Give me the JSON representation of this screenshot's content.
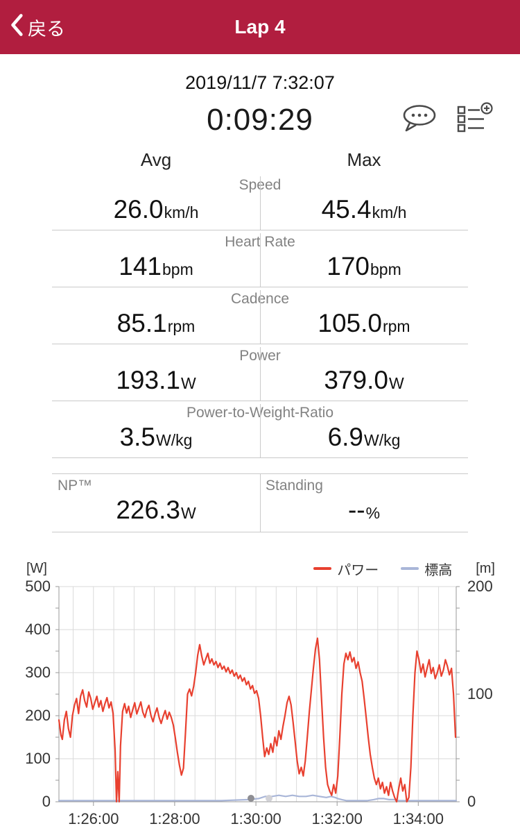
{
  "nav": {
    "back": "戻る",
    "title": "Lap 4"
  },
  "summary": {
    "datetime": "2019/11/7 7:32:07",
    "duration": "0:09:29"
  },
  "columns": {
    "avg": "Avg",
    "max": "Max"
  },
  "metrics": [
    {
      "label": "Speed",
      "avg": "26.0",
      "avgUnit": "km/h",
      "max": "45.4",
      "maxUnit": "km/h"
    },
    {
      "label": "Heart Rate",
      "avg": "141",
      "avgUnit": "bpm",
      "max": "170",
      "maxUnit": "bpm"
    },
    {
      "label": "Cadence",
      "avg": "85.1",
      "avgUnit": "rpm",
      "max": "105.0",
      "maxUnit": "rpm"
    },
    {
      "label": "Power",
      "avg": "193.1",
      "avgUnit": "W",
      "max": "379.0",
      "maxUnit": "W"
    },
    {
      "label": "Power-to-Weight-Ratio",
      "avg": "3.5",
      "avgUnit": "W/kg",
      "max": "6.9",
      "maxUnit": "W/kg"
    }
  ],
  "extra": {
    "np_label": "NP™",
    "np_value": "226.3",
    "np_unit": "W",
    "standing_label": "Standing",
    "standing_value": "--",
    "standing_unit": "%"
  },
  "theme": {
    "header_bg": "#b11e3f",
    "power_color": "#e8402f",
    "elevation_color": "#a9b6d8"
  },
  "chart_data": {
    "type": "line",
    "title": "",
    "legend_position": "top-right",
    "grid": true,
    "x_grid_step": 30,
    "x_domain": [
      0,
      587
    ],
    "x_ticks": [
      {
        "t": 51,
        "label": "1:26:00"
      },
      {
        "t": 171,
        "label": "1:28:00"
      },
      {
        "t": 291,
        "label": "1:30:00"
      },
      {
        "t": 411,
        "label": "1:32:00"
      },
      {
        "t": 531,
        "label": "1:34:00"
      }
    ],
    "y_left": {
      "unit": "[W]",
      "min": 0,
      "max": 500,
      "ticks": [
        0,
        100,
        200,
        300,
        400,
        500
      ],
      "minor": 50
    },
    "y_right": {
      "unit": "[m]",
      "min": 0,
      "max": 200,
      "ticks": [
        0,
        100,
        200
      ],
      "minor": 20
    },
    "series": [
      {
        "name": "パワー",
        "color": "#e8402f",
        "axis": "left",
        "points": [
          [
            0,
            190
          ],
          [
            3,
            155
          ],
          [
            5,
            145
          ],
          [
            8,
            190
          ],
          [
            11,
            210
          ],
          [
            14,
            170
          ],
          [
            17,
            150
          ],
          [
            20,
            200
          ],
          [
            23,
            225
          ],
          [
            26,
            240
          ],
          [
            29,
            205
          ],
          [
            32,
            245
          ],
          [
            35,
            260
          ],
          [
            38,
            235
          ],
          [
            41,
            220
          ],
          [
            44,
            255
          ],
          [
            47,
            240
          ],
          [
            50,
            215
          ],
          [
            53,
            230
          ],
          [
            56,
            245
          ],
          [
            59,
            220
          ],
          [
            62,
            235
          ],
          [
            65,
            210
          ],
          [
            68,
            228
          ],
          [
            71,
            242
          ],
          [
            74,
            218
          ],
          [
            77,
            232
          ],
          [
            80,
            205
          ],
          [
            83,
            120
          ],
          [
            85,
            0
          ],
          [
            87,
            70
          ],
          [
            89,
            0
          ],
          [
            91,
            130
          ],
          [
            94,
            210
          ],
          [
            97,
            228
          ],
          [
            100,
            206
          ],
          [
            103,
            222
          ],
          [
            106,
            196
          ],
          [
            109,
            214
          ],
          [
            112,
            230
          ],
          [
            115,
            204
          ],
          [
            118,
            218
          ],
          [
            121,
            232
          ],
          [
            124,
            208
          ],
          [
            127,
            196
          ],
          [
            130,
            214
          ],
          [
            133,
            224
          ],
          [
            136,
            200
          ],
          [
            139,
            186
          ],
          [
            142,
            204
          ],
          [
            145,
            218
          ],
          [
            148,
            196
          ],
          [
            151,
            182
          ],
          [
            154,
            198
          ],
          [
            157,
            212
          ],
          [
            160,
            192
          ],
          [
            163,
            208
          ],
          [
            166,
            196
          ],
          [
            169,
            178
          ],
          [
            172,
            148
          ],
          [
            175,
            115
          ],
          [
            178,
            85
          ],
          [
            181,
            62
          ],
          [
            184,
            78
          ],
          [
            187,
            160
          ],
          [
            190,
            250
          ],
          [
            193,
            262
          ],
          [
            196,
            246
          ],
          [
            199,
            268
          ],
          [
            202,
            300
          ],
          [
            205,
            340
          ],
          [
            208,
            365
          ],
          [
            211,
            338
          ],
          [
            214,
            318
          ],
          [
            217,
            332
          ],
          [
            220,
            345
          ],
          [
            223,
            322
          ],
          [
            226,
            332
          ],
          [
            229,
            318
          ],
          [
            232,
            326
          ],
          [
            235,
            312
          ],
          [
            238,
            322
          ],
          [
            241,
            308
          ],
          [
            244,
            315
          ],
          [
            247,
            302
          ],
          [
            250,
            312
          ],
          [
            253,
            298
          ],
          [
            256,
            306
          ],
          [
            259,
            292
          ],
          [
            262,
            300
          ],
          [
            265,
            286
          ],
          [
            268,
            294
          ],
          [
            271,
            280
          ],
          [
            274,
            288
          ],
          [
            277,
            272
          ],
          [
            280,
            280
          ],
          [
            283,
            262
          ],
          [
            286,
            270
          ],
          [
            289,
            252
          ],
          [
            292,
            258
          ],
          [
            295,
            240
          ],
          [
            298,
            200
          ],
          [
            301,
            150
          ],
          [
            304,
            105
          ],
          [
            307,
            125
          ],
          [
            310,
            110
          ],
          [
            313,
            135
          ],
          [
            316,
            115
          ],
          [
            319,
            150
          ],
          [
            322,
            130
          ],
          [
            325,
            165
          ],
          [
            328,
            145
          ],
          [
            331,
            175
          ],
          [
            334,
            200
          ],
          [
            337,
            230
          ],
          [
            340,
            245
          ],
          [
            343,
            225
          ],
          [
            346,
            185
          ],
          [
            349,
            140
          ],
          [
            352,
            95
          ],
          [
            355,
            65
          ],
          [
            358,
            80
          ],
          [
            361,
            60
          ],
          [
            364,
            95
          ],
          [
            367,
            150
          ],
          [
            370,
            210
          ],
          [
            373,
            260
          ],
          [
            376,
            310
          ],
          [
            379,
            355
          ],
          [
            382,
            380
          ],
          [
            385,
            330
          ],
          [
            388,
            240
          ],
          [
            391,
            150
          ],
          [
            394,
            80
          ],
          [
            397,
            40
          ],
          [
            400,
            25
          ],
          [
            403,
            15
          ],
          [
            406,
            40
          ],
          [
            409,
            20
          ],
          [
            412,
            60
          ],
          [
            415,
            150
          ],
          [
            418,
            250
          ],
          [
            421,
            320
          ],
          [
            424,
            345
          ],
          [
            427,
            330
          ],
          [
            430,
            348
          ],
          [
            433,
            325
          ],
          [
            436,
            335
          ],
          [
            439,
            310
          ],
          [
            442,
            325
          ],
          [
            445,
            300
          ],
          [
            448,
            280
          ],
          [
            451,
            240
          ],
          [
            454,
            195
          ],
          [
            457,
            150
          ],
          [
            460,
            110
          ],
          [
            463,
            80
          ],
          [
            466,
            55
          ],
          [
            469,
            40
          ],
          [
            472,
            55
          ],
          [
            475,
            30
          ],
          [
            478,
            45
          ],
          [
            481,
            20
          ],
          [
            484,
            35
          ],
          [
            487,
            15
          ],
          [
            490,
            45
          ],
          [
            493,
            25
          ],
          [
            496,
            10
          ],
          [
            499,
            0
          ],
          [
            502,
            30
          ],
          [
            505,
            55
          ],
          [
            508,
            25
          ],
          [
            511,
            40
          ],
          [
            514,
            0
          ],
          [
            517,
            10
          ],
          [
            520,
            80
          ],
          [
            523,
            200
          ],
          [
            526,
            300
          ],
          [
            529,
            350
          ],
          [
            532,
            330
          ],
          [
            535,
            300
          ],
          [
            538,
            320
          ],
          [
            541,
            290
          ],
          [
            544,
            310
          ],
          [
            547,
            330
          ],
          [
            550,
            298
          ],
          [
            553,
            312
          ],
          [
            556,
            286
          ],
          [
            559,
            300
          ],
          [
            562,
            318
          ],
          [
            565,
            292
          ],
          [
            568,
            306
          ],
          [
            571,
            330
          ],
          [
            574,
            315
          ],
          [
            577,
            295
          ],
          [
            580,
            310
          ],
          [
            583,
            250
          ],
          [
            586,
            150
          ]
        ]
      },
      {
        "name": "標高",
        "color": "#a9b6d8",
        "axis": "right",
        "points": [
          [
            0,
            1
          ],
          [
            40,
            1
          ],
          [
            80,
            1
          ],
          [
            120,
            1
          ],
          [
            160,
            1
          ],
          [
            200,
            1
          ],
          [
            240,
            1
          ],
          [
            280,
            2
          ],
          [
            295,
            3
          ],
          [
            305,
            5
          ],
          [
            315,
            5
          ],
          [
            325,
            6
          ],
          [
            335,
            5
          ],
          [
            345,
            6
          ],
          [
            355,
            5
          ],
          [
            365,
            5
          ],
          [
            375,
            6
          ],
          [
            385,
            5
          ],
          [
            395,
            4
          ],
          [
            402,
            5
          ],
          [
            408,
            4
          ],
          [
            412,
            3
          ],
          [
            418,
            2
          ],
          [
            425,
            1
          ],
          [
            440,
            1
          ],
          [
            455,
            1
          ],
          [
            465,
            2
          ],
          [
            472,
            3
          ],
          [
            480,
            3
          ],
          [
            488,
            2
          ],
          [
            495,
            2
          ],
          [
            502,
            1
          ],
          [
            515,
            1
          ],
          [
            530,
            1
          ],
          [
            545,
            1
          ],
          [
            560,
            1
          ],
          [
            575,
            1
          ],
          [
            587,
            1
          ]
        ]
      }
    ]
  },
  "pager": {
    "count": 2,
    "active": 0
  }
}
